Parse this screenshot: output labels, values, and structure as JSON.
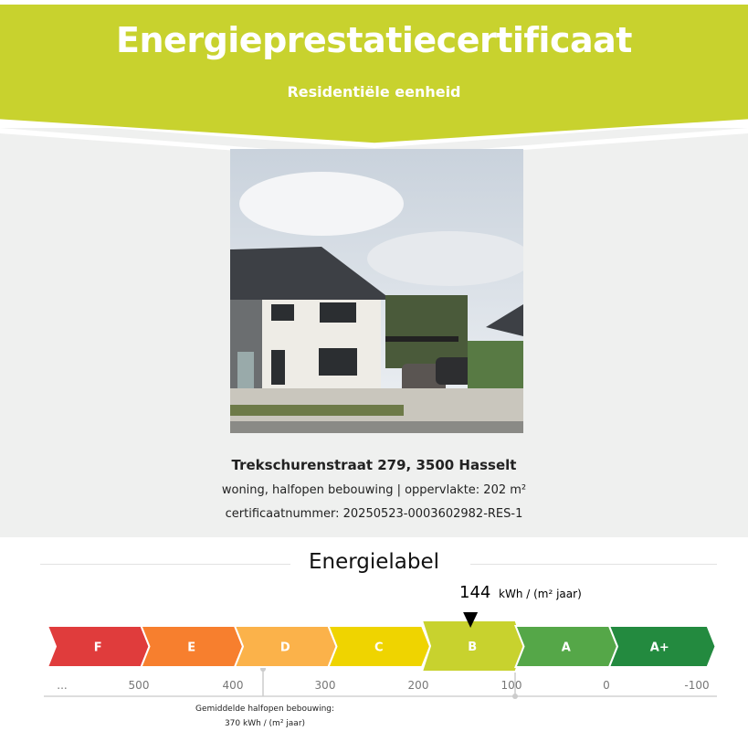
{
  "header": {
    "title": "Energieprestatiecertificaat",
    "subtitle": "Residentiële eenheid",
    "color": "#c8d22e"
  },
  "property": {
    "address": "Trekschurenstraat 279, 3500 Hasselt",
    "description": "woning, halfopen bebouwing | oppervlakte: 202 m²",
    "certificate": "certificaatnummer: 20250523-0003602982-RES-1"
  },
  "energylabel": {
    "title": "Energielabel",
    "value": "144",
    "unit": "kWh / (m² jaar)",
    "current_label": "B",
    "labels": [
      {
        "name": "F",
        "color": "#e03c3c"
      },
      {
        "name": "E",
        "color": "#f77f2e"
      },
      {
        "name": "D",
        "color": "#fbb24a"
      },
      {
        "name": "C",
        "color": "#efd400"
      },
      {
        "name": "B",
        "color": "#c8d22e"
      },
      {
        "name": "A",
        "color": "#55a748"
      },
      {
        "name": "A+",
        "color": "#238a3f"
      }
    ],
    "ticks": [
      "...",
      "500",
      "400",
      "300",
      "200",
      "100",
      "0",
      "-100"
    ],
    "average": {
      "line1": "Gemiddelde halfopen bebouwing:",
      "line2": "370 kWh / (m² jaar)"
    }
  }
}
